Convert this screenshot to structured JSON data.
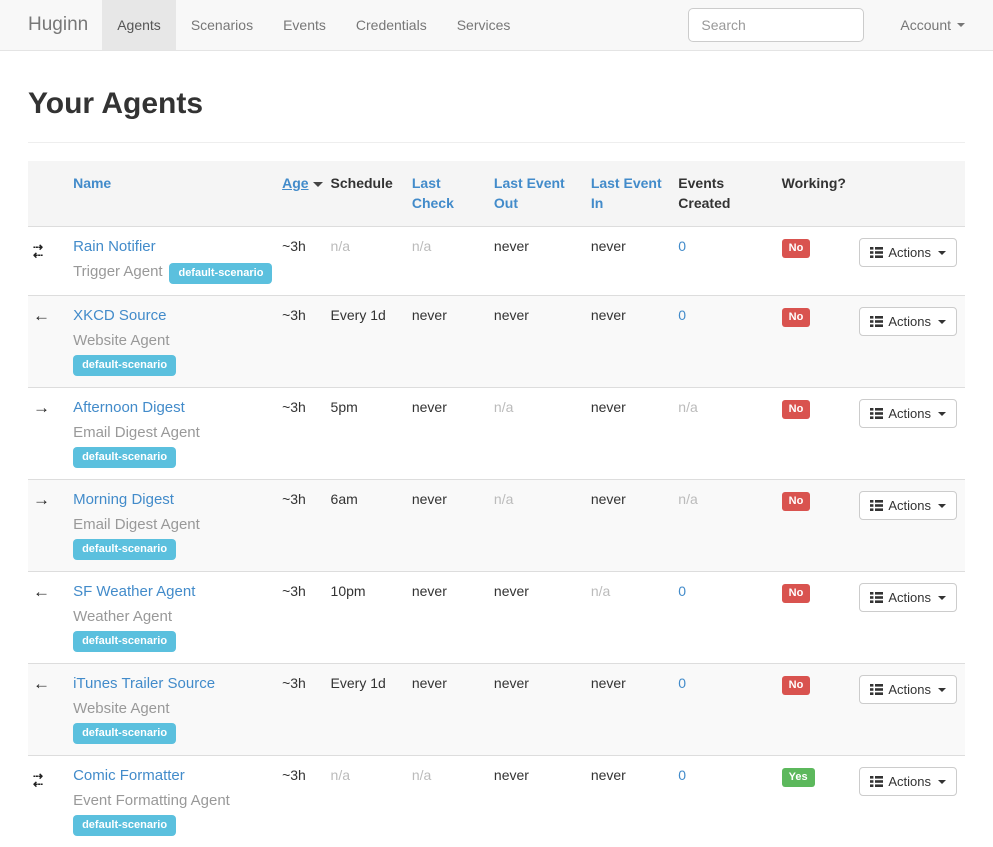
{
  "navbar": {
    "brand": "Huginn",
    "items": [
      {
        "label": "Agents",
        "active": true
      },
      {
        "label": "Scenarios",
        "active": false
      },
      {
        "label": "Events",
        "active": false
      },
      {
        "label": "Credentials",
        "active": false
      },
      {
        "label": "Services",
        "active": false
      }
    ],
    "search_placeholder": "Search",
    "account_label": "Account"
  },
  "page": {
    "title": "Your Agents"
  },
  "table": {
    "actions_label": "Actions",
    "headers": [
      {
        "label": "Name",
        "link": true
      },
      {
        "label": "Age",
        "link": true,
        "sorted": "desc",
        "nowrap": true
      },
      {
        "label": "Schedule",
        "link": false
      },
      {
        "label": "Last Check",
        "link": true
      },
      {
        "label": "Last Event Out",
        "link": true
      },
      {
        "label": "Last Event In",
        "link": true
      },
      {
        "label": "Events Created",
        "link": false
      },
      {
        "label": "Working?",
        "link": false
      }
    ],
    "rows": [
      {
        "icon": "transfer",
        "name": "Rain Notifier",
        "type": "Trigger Agent",
        "scenario": "default-scenario",
        "age": {
          "text": "~3h"
        },
        "schedule": {
          "text": "n/a",
          "muted": true
        },
        "last_check": {
          "text": "n/a",
          "muted": true
        },
        "last_event_out": {
          "text": "never"
        },
        "last_event_in": {
          "text": "never"
        },
        "events_created": {
          "text": "0",
          "link": true
        },
        "working": {
          "text": "No"
        }
      },
      {
        "icon": "arrow-left",
        "name": "XKCD Source",
        "type": "Website Agent",
        "scenario": "default-scenario",
        "age": {
          "text": "~3h"
        },
        "schedule": {
          "text": "Every 1d"
        },
        "last_check": {
          "text": "never"
        },
        "last_event_out": {
          "text": "never"
        },
        "last_event_in": {
          "text": "never"
        },
        "events_created": {
          "text": "0",
          "link": true
        },
        "working": {
          "text": "No"
        }
      },
      {
        "icon": "arrow-right",
        "name": "Afternoon Digest",
        "type": "Email Digest Agent",
        "scenario": "default-scenario",
        "age": {
          "text": "~3h"
        },
        "schedule": {
          "text": "5pm"
        },
        "last_check": {
          "text": "never"
        },
        "last_event_out": {
          "text": "n/a",
          "muted": true
        },
        "last_event_in": {
          "text": "never"
        },
        "events_created": {
          "text": "n/a",
          "muted": true
        },
        "working": {
          "text": "No"
        }
      },
      {
        "icon": "arrow-right",
        "name": "Morning Digest",
        "type": "Email Digest Agent",
        "scenario": "default-scenario",
        "age": {
          "text": "~3h"
        },
        "schedule": {
          "text": "6am"
        },
        "last_check": {
          "text": "never"
        },
        "last_event_out": {
          "text": "n/a",
          "muted": true
        },
        "last_event_in": {
          "text": "never"
        },
        "events_created": {
          "text": "n/a",
          "muted": true
        },
        "working": {
          "text": "No"
        }
      },
      {
        "icon": "arrow-left",
        "name": "SF Weather Agent",
        "type": "Weather Agent",
        "scenario": "default-scenario",
        "age": {
          "text": "~3h"
        },
        "schedule": {
          "text": "10pm"
        },
        "last_check": {
          "text": "never"
        },
        "last_event_out": {
          "text": "never"
        },
        "last_event_in": {
          "text": "n/a",
          "muted": true
        },
        "events_created": {
          "text": "0",
          "link": true
        },
        "working": {
          "text": "No"
        }
      },
      {
        "icon": "arrow-left",
        "name": "iTunes Trailer Source",
        "type": "Website Agent",
        "scenario": "default-scenario",
        "age": {
          "text": "~3h"
        },
        "schedule": {
          "text": "Every 1d"
        },
        "last_check": {
          "text": "never"
        },
        "last_event_out": {
          "text": "never"
        },
        "last_event_in": {
          "text": "never"
        },
        "events_created": {
          "text": "0",
          "link": true
        },
        "working": {
          "text": "No"
        }
      },
      {
        "icon": "transfer",
        "name": "Comic Formatter",
        "type": "Event Formatting Agent",
        "scenario": "default-scenario",
        "age": {
          "text": "~3h"
        },
        "schedule": {
          "text": "n/a",
          "muted": true
        },
        "last_check": {
          "text": "n/a",
          "muted": true
        },
        "last_event_out": {
          "text": "never"
        },
        "last_event_in": {
          "text": "never"
        },
        "events_created": {
          "text": "0",
          "link": true
        },
        "working": {
          "text": "Yes"
        }
      }
    ]
  },
  "colors": {
    "link": "#428bca",
    "muted_text": "#bbbbbb",
    "scenario_badge": "#5bc0de",
    "working_no": "#d9534f",
    "working_yes": "#5cb85c",
    "navbar_bg": "#f8f8f8",
    "navbar_active_bg": "#e7e7e7",
    "table_header_bg": "#f5f5f5",
    "row_stripe_bg": "#f9f9f9"
  }
}
